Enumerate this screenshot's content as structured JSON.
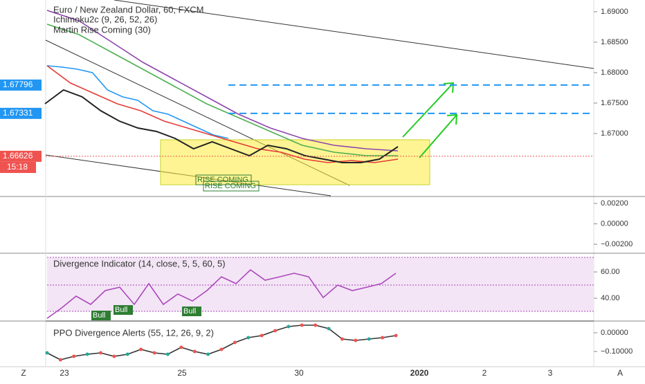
{
  "chart_data": [
    {
      "type": "line",
      "title": "Euro / New Zealand Dollar, 60, FXCM",
      "subtitles": [
        "Ichimoku2c (9, 26, 52, 26)",
        "Martin Rise Coming (30)"
      ],
      "ylim": [
        1.65977,
        1.69193
      ],
      "yticks": [
        {
          "value": 1.69,
          "label": "1.69000"
        },
        {
          "value": 1.685,
          "label": "1.68500"
        },
        {
          "value": 1.68,
          "label": "1.68000"
        },
        {
          "value": 1.675,
          "label": "1.67500"
        },
        {
          "value": 1.67,
          "label": "1.67000"
        }
      ],
      "price_labels": [
        {
          "value": 1.67796,
          "label": "1.67796",
          "color": "#2196f3"
        },
        {
          "value": 1.67331,
          "label": "1.67331",
          "color": "#2196f3"
        },
        {
          "value": 1.66626,
          "label": "1.66626",
          "color": "#ef5350"
        }
      ],
      "countdown": "15:18",
      "annotations": [
        "RISE COMING",
        "RISE COMING"
      ],
      "series": [
        {
          "color": "#8e44ad",
          "values": [
            1.69023,
            1.68852,
            1.68511,
            1.6817,
            1.67886,
            1.67602,
            1.67318,
            1.67091,
            1.6692,
            1.66807,
            1.6675,
            1.66716
          ]
        },
        {
          "color": "#4caf50",
          "values": [
            1.68795,
            1.68625,
            1.68341,
            1.68057,
            1.67773,
            1.67488,
            1.67261,
            1.67034,
            1.66807,
            1.66693,
            1.66636,
            1.66636
          ]
        },
        {
          "color": "#2196f3",
          "values": [
            1.68113,
            1.68091,
            1.68057,
            1.68,
            1.67716,
            1.67602,
            1.67545,
            1.67375,
            1.67318,
            1.67204,
            1.67091,
            1.66977,
            1.6692
          ]
        },
        {
          "color": "#e53935",
          "values": [
            1.68113,
            1.67829,
            1.67659,
            1.67488,
            1.67375,
            1.67204,
            1.67091,
            1.66977,
            1.66863,
            1.6675,
            1.66693,
            1.66579,
            1.66522,
            1.66557,
            1.66522,
            1.66579
          ]
        },
        {
          "color": "#222222",
          "values": [
            1.67488,
            1.67716,
            1.67602,
            1.67375,
            1.67204,
            1.67091,
            1.67034,
            1.6692,
            1.6675,
            1.66863,
            1.6675,
            1.66636,
            1.66807,
            1.6675,
            1.66636,
            1.66579,
            1.66522,
            1.66522,
            1.66579,
            1.66784
          ]
        }
      ],
      "corner_buttons": [
        "Z",
        "A"
      ]
    },
    {
      "type": "empty",
      "ylim": [
        -0.00281,
        0.00261
      ],
      "yticks": [
        {
          "value": 0.002,
          "label": "0.00200"
        },
        {
          "value": 0,
          "label": "0.00000"
        },
        {
          "value": -0.002,
          "label": "−0.00200"
        }
      ]
    },
    {
      "type": "line",
      "title": "Divergence Indicator (14, close, 5, 5, 60, 5)",
      "ylim": [
        23.7,
        73.7
      ],
      "yticks": [
        {
          "value": 60,
          "label": "60.00"
        },
        {
          "value": 40,
          "label": "40.00"
        }
      ],
      "annotations": [
        "Bull",
        "Bull",
        "Bull"
      ],
      "series": [
        {
          "color": "#ab47bc",
          "values": [
            24.7,
            32.6,
            41.6,
            35.3,
            45.8,
            48.4,
            35.3,
            51.1,
            35.3,
            43.2,
            37.9,
            45.8,
            56.3,
            51.1,
            61.6,
            53.7,
            56.3,
            59.0,
            56.3,
            40.5,
            50.0,
            45.8,
            48.4,
            51.1,
            59.0
          ]
        }
      ]
    },
    {
      "type": "line",
      "title": "PPO Divergence Alerts (55, 12, 26, 9, 2)",
      "ylim": [
        -0.1815,
        0.0593
      ],
      "yticks": [
        {
          "value": 0,
          "label": "0.00000"
        },
        {
          "value": -0.1,
          "label": "−0.10000"
        }
      ],
      "x_labels": [
        "23",
        "25",
        "30",
        "2020",
        "2",
        "3"
      ],
      "series": [
        {
          "color": "#333333",
          "values": [
            -0.1074,
            -0.1444,
            -0.1259,
            -0.1148,
            -0.1074,
            -0.1259,
            -0.1148,
            -0.0889,
            -0.1074,
            -0.1148,
            -0.0777,
            -0.1,
            -0.1148,
            -0.0889,
            -0.0518,
            -0.0259,
            -0.0148,
            0.0111,
            0.0333,
            0.0408,
            0.0408,
            0.0223,
            -0.0333,
            -0.0407,
            -0.0333,
            -0.0259,
            -0.0148
          ]
        }
      ]
    }
  ]
}
